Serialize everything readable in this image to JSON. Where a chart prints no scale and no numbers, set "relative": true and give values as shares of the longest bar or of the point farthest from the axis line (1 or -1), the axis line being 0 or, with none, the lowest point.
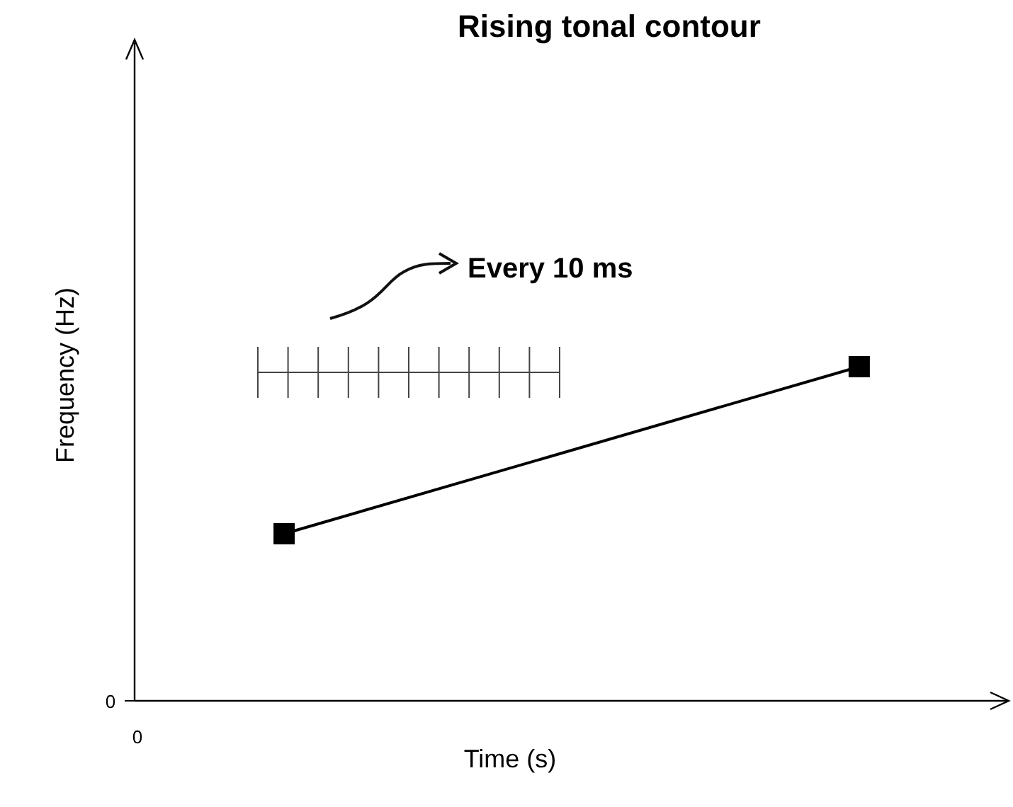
{
  "chart_data": {
    "type": "line",
    "title": "Rising tonal contour",
    "xlabel": "Time (s)",
    "ylabel": "Frequency (Hz)",
    "categories": [
      null,
      null
    ],
    "relative": true,
    "marker": "square",
    "line_style": "solid",
    "series": [
      {
        "color": "#000000",
        "values": [
          0.5,
          1
        ]
      }
    ],
    "annotations": [
      "Every 10 ms",
      "0",
      "0"
    ]
  }
}
